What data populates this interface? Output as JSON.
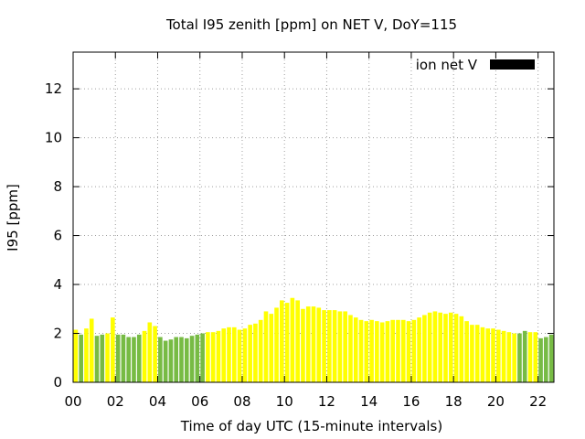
{
  "chart_data": {
    "type": "bar",
    "title": "Total I95 zenith [ppm] on NET V, DoY=115",
    "xlabel": "Time of day UTC (15-minute intervals)",
    "ylabel": "I95 [ppm]",
    "ylim": [
      0,
      13.5
    ],
    "xlim": [
      0,
      22.75
    ],
    "yticks": [
      0,
      2,
      4,
      6,
      8,
      10,
      12
    ],
    "xticks": [
      {
        "value": 0,
        "label": "00"
      },
      {
        "value": 2,
        "label": "02"
      },
      {
        "value": 4,
        "label": "04"
      },
      {
        "value": 6,
        "label": "06"
      },
      {
        "value": 8,
        "label": "08"
      },
      {
        "value": 10,
        "label": "10"
      },
      {
        "value": 12,
        "label": "12"
      },
      {
        "value": 14,
        "label": "14"
      },
      {
        "value": 16,
        "label": "16"
      },
      {
        "value": 18,
        "label": "18"
      },
      {
        "value": 20,
        "label": "20"
      },
      {
        "value": 22,
        "label": "22"
      }
    ],
    "grid": true,
    "legend": {
      "label": "ion net V",
      "position": "top-right",
      "color": "#000000"
    },
    "colors": {
      "yellow": "#ffff00",
      "green": "#77bb44"
    },
    "interval_hours": 0.25,
    "series": [
      {
        "x": [
          0.0,
          0.25,
          0.5,
          0.75,
          1.0,
          1.25,
          1.5,
          1.75,
          2.0,
          2.25,
          2.5,
          2.75,
          3.0,
          3.25,
          3.5,
          3.75,
          4.0,
          4.25,
          4.5,
          4.75,
          5.0,
          5.25,
          5.5,
          5.75,
          6.0,
          6.25,
          6.5,
          6.75,
          7.0,
          7.25,
          7.5,
          7.75,
          8.0,
          8.25,
          8.5,
          8.75,
          9.0,
          9.25,
          9.5,
          9.75,
          10.0,
          10.25,
          10.5,
          10.75,
          11.0,
          11.25,
          11.5,
          11.75,
          12.0,
          12.25,
          12.5,
          12.75,
          13.0,
          13.25,
          13.5,
          13.75,
          14.0,
          14.25,
          14.5,
          14.75,
          15.0,
          15.25,
          15.5,
          15.75,
          16.0,
          16.25,
          16.5,
          16.75,
          17.0,
          17.25,
          17.5,
          17.75,
          18.0,
          18.25,
          18.5,
          18.75,
          19.0,
          19.25,
          19.5,
          19.75,
          20.0,
          20.25,
          20.5,
          20.75,
          21.0,
          21.25,
          21.5,
          21.75,
          22.0,
          22.25,
          22.5
        ],
        "values": [
          2.15,
          1.95,
          2.2,
          2.6,
          1.9,
          1.95,
          2.0,
          2.65,
          1.95,
          1.95,
          1.85,
          1.85,
          1.95,
          2.1,
          2.45,
          2.3,
          1.85,
          1.7,
          1.75,
          1.85,
          1.85,
          1.8,
          1.9,
          1.95,
          2.0,
          2.05,
          2.05,
          2.1,
          2.2,
          2.25,
          2.25,
          2.15,
          2.2,
          2.35,
          2.4,
          2.55,
          2.9,
          2.8,
          3.05,
          3.35,
          3.25,
          3.45,
          3.35,
          3.0,
          3.1,
          3.1,
          3.05,
          2.95,
          2.95,
          2.95,
          2.9,
          2.9,
          2.75,
          2.65,
          2.55,
          2.5,
          2.55,
          2.5,
          2.45,
          2.5,
          2.55,
          2.55,
          2.55,
          2.5,
          2.55,
          2.65,
          2.75,
          2.85,
          2.9,
          2.85,
          2.8,
          2.85,
          2.8,
          2.7,
          2.5,
          2.35,
          2.35,
          2.25,
          2.2,
          2.2,
          2.15,
          2.1,
          2.05,
          2.0,
          2.0,
          2.1,
          2.05,
          2.05,
          1.8,
          1.85,
          1.95
        ],
        "colors": [
          "yellow",
          "green",
          "yellow",
          "yellow",
          "green",
          "green",
          "yellow",
          "yellow",
          "green",
          "green",
          "green",
          "green",
          "green",
          "yellow",
          "yellow",
          "yellow",
          "green",
          "green",
          "green",
          "green",
          "green",
          "green",
          "green",
          "green",
          "green",
          "yellow",
          "yellow",
          "yellow",
          "yellow",
          "yellow",
          "yellow",
          "yellow",
          "yellow",
          "yellow",
          "yellow",
          "yellow",
          "yellow",
          "yellow",
          "yellow",
          "yellow",
          "yellow",
          "yellow",
          "yellow",
          "yellow",
          "yellow",
          "yellow",
          "yellow",
          "yellow",
          "yellow",
          "yellow",
          "yellow",
          "yellow",
          "yellow",
          "yellow",
          "yellow",
          "yellow",
          "yellow",
          "yellow",
          "yellow",
          "yellow",
          "yellow",
          "yellow",
          "yellow",
          "yellow",
          "yellow",
          "yellow",
          "yellow",
          "yellow",
          "yellow",
          "yellow",
          "yellow",
          "yellow",
          "yellow",
          "yellow",
          "yellow",
          "yellow",
          "yellow",
          "yellow",
          "yellow",
          "yellow",
          "yellow",
          "yellow",
          "yellow",
          "yellow",
          "green",
          "green",
          "yellow",
          "yellow",
          "green",
          "green",
          "green"
        ]
      }
    ]
  }
}
